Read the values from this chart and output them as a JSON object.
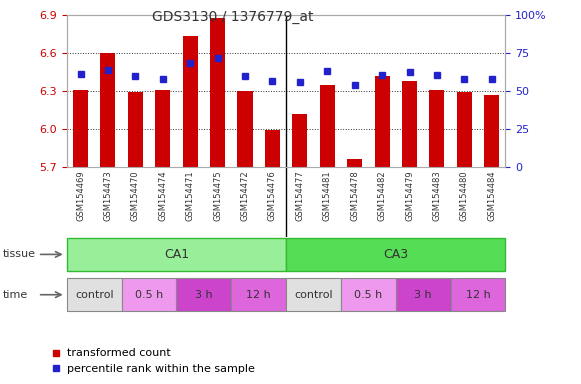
{
  "title": "GDS3130 / 1376779_at",
  "samples": [
    "GSM154469",
    "GSM154473",
    "GSM154470",
    "GSM154474",
    "GSM154471",
    "GSM154475",
    "GSM154472",
    "GSM154476",
    "GSM154477",
    "GSM154481",
    "GSM154478",
    "GSM154482",
    "GSM154479",
    "GSM154483",
    "GSM154480",
    "GSM154484"
  ],
  "red_values": [
    6.31,
    6.6,
    6.29,
    6.31,
    6.74,
    6.88,
    6.3,
    5.99,
    6.12,
    6.35,
    5.76,
    6.42,
    6.38,
    6.31,
    6.29,
    6.27
  ],
  "blue_values": [
    6.44,
    6.47,
    6.42,
    6.4,
    6.52,
    6.56,
    6.42,
    6.38,
    6.37,
    6.46,
    6.35,
    6.43,
    6.45,
    6.43,
    6.4,
    6.4
  ],
  "ymin": 5.7,
  "ymax": 6.9,
  "yticks_left": [
    5.7,
    6.0,
    6.3,
    6.6,
    6.9
  ],
  "yticks_right_pct": [
    0,
    25,
    50,
    75,
    100
  ],
  "tissue_labels": [
    {
      "label": "CA1",
      "start": 0,
      "end": 8
    },
    {
      "label": "CA3",
      "start": 8,
      "end": 16
    }
  ],
  "time_groups": [
    {
      "label": "control",
      "start": 0,
      "end": 2
    },
    {
      "label": "0.5 h",
      "start": 2,
      "end": 4
    },
    {
      "label": "3 h",
      "start": 4,
      "end": 6
    },
    {
      "label": "12 h",
      "start": 6,
      "end": 8
    },
    {
      "label": "control",
      "start": 8,
      "end": 10
    },
    {
      "label": "0.5 h",
      "start": 10,
      "end": 12
    },
    {
      "label": "3 h",
      "start": 12,
      "end": 14
    },
    {
      "label": "12 h",
      "start": 14,
      "end": 16
    }
  ],
  "time_colors": {
    "control": "#e0e0e0",
    "0.5 h": "#ee99ee",
    "3 h": "#cc44cc",
    "12 h": "#dd66dd"
  },
  "bar_color": "#cc0000",
  "dot_color": "#2222cc",
  "tissue_color": "#99ee99",
  "tissue_border_color": "#33bb33",
  "tissue_ca3_color": "#55dd55",
  "xtick_bg": "#cccccc",
  "left_tick_color": "#cc0000",
  "right_tick_color": "#2222cc",
  "grid_color": "#333333",
  "title_fontsize": 10,
  "tick_fontsize": 8,
  "sample_fontsize": 6,
  "legend_fontsize": 8,
  "tissue_fontsize": 9,
  "time_fontsize": 8
}
